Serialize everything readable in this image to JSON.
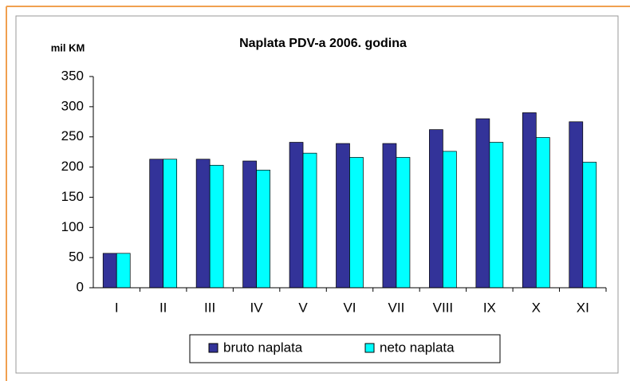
{
  "chart_data": {
    "type": "bar",
    "title": "Naplata PDV-a 2006. godina",
    "y_label": "mil KM",
    "categories": [
      "I",
      "II",
      "III",
      "IV",
      "V",
      "VI",
      "VII",
      "VIII",
      "IX",
      "X",
      "XI"
    ],
    "series": [
      {
        "name": "bruto naplata",
        "color": "#333399",
        "values": [
          57,
          213,
          213,
          210,
          241,
          239,
          239,
          262,
          280,
          290,
          275
        ]
      },
      {
        "name": "neto naplata",
        "color": "#00ffff",
        "values": [
          57,
          213,
          203,
          195,
          223,
          216,
          216,
          226,
          241,
          249,
          208
        ]
      }
    ],
    "ylim": [
      0,
      350
    ],
    "yticks": [
      0,
      50,
      100,
      150,
      200,
      250,
      300,
      350
    ],
    "grid": false,
    "legend": "bottom"
  }
}
